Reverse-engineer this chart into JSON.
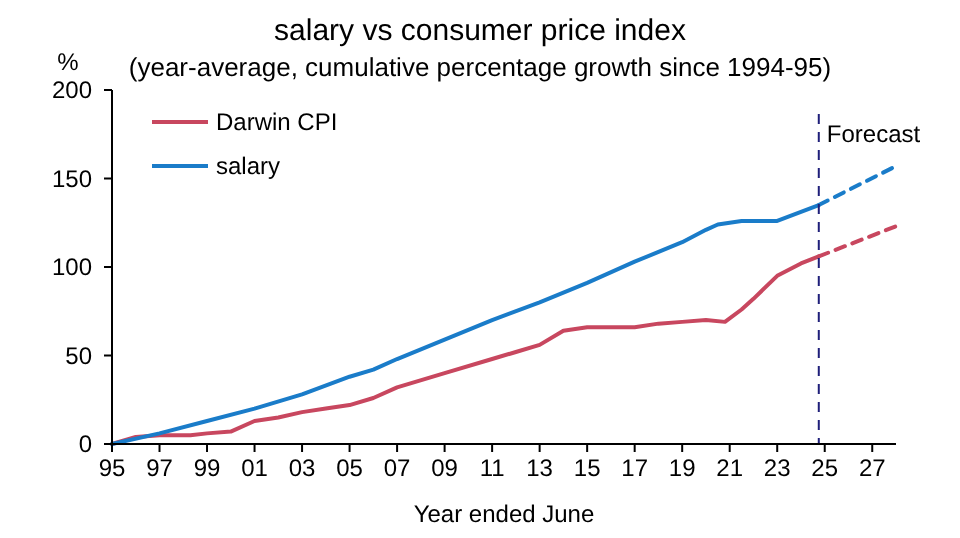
{
  "chart_data": {
    "type": "line",
    "title": "salary vs consumer price index",
    "subtitle": "(year-average, cumulative percentage growth since 1994-95)",
    "xlabel": "Year ended June",
    "ylabel": "%",
    "xlim": [
      1995,
      2028
    ],
    "xticks": [
      {
        "value": 1995,
        "label": "95"
      },
      {
        "value": 1997,
        "label": "97"
      },
      {
        "value": 1999,
        "label": "99"
      },
      {
        "value": 2001,
        "label": "01"
      },
      {
        "value": 2003,
        "label": "03"
      },
      {
        "value": 2005,
        "label": "05"
      },
      {
        "value": 2007,
        "label": "07"
      },
      {
        "value": 2009,
        "label": "09"
      },
      {
        "value": 2011,
        "label": "11"
      },
      {
        "value": 2013,
        "label": "13"
      },
      {
        "value": 2015,
        "label": "15"
      },
      {
        "value": 2017,
        "label": "17"
      },
      {
        "value": 2019,
        "label": "19"
      },
      {
        "value": 2021,
        "label": "21"
      },
      {
        "value": 2023,
        "label": "23"
      },
      {
        "value": 2025,
        "label": "25"
      },
      {
        "value": 2027,
        "label": "27"
      }
    ],
    "ylim": [
      0,
      200
    ],
    "yticks": [
      0,
      50,
      100,
      150,
      200
    ],
    "grid": false,
    "legend": "top left",
    "ref_lines": [
      {
        "axis": "x",
        "value": 2024.75,
        "label": "Forecast",
        "color": "#1f1f7a",
        "line_style": "dashed"
      }
    ],
    "series": [
      {
        "name": "Darwin CPI",
        "color": "#c8475f",
        "line_style": "solid",
        "x": [
          1995,
          1996,
          1997,
          1998.3,
          1999,
          2000,
          2001,
          2002,
          2003,
          2004,
          2005,
          2006,
          2007,
          2009,
          2011,
          2012,
          2013,
          2014,
          2015,
          2017,
          2018,
          2019,
          2020,
          2020.8,
          2021.5,
          2022,
          2023,
          2024,
          2024.75
        ],
        "values": [
          0,
          4,
          5,
          5,
          6,
          7,
          13,
          15,
          18,
          20,
          22,
          26,
          32,
          40,
          48,
          52,
          56,
          64,
          66,
          66,
          68,
          69,
          70,
          69,
          76,
          82,
          95,
          102,
          106
        ]
      },
      {
        "name": "salary",
        "color": "#1a7cc9",
        "line_style": "solid",
        "x": [
          1995,
          1997,
          1999,
          2001,
          2003,
          2005,
          2006,
          2007,
          2009,
          2011,
          2013,
          2015,
          2017,
          2019,
          2020,
          2020.5,
          2021.5,
          2023,
          2024.75
        ],
        "values": [
          0,
          6,
          13,
          20,
          28,
          38,
          42,
          48,
          59,
          70,
          80,
          91,
          103,
          114,
          121,
          124,
          126,
          126,
          135
        ]
      },
      {
        "color": "#c8475f",
        "line_style": "dashed",
        "x": [
          2024.75,
          2028
        ],
        "values": [
          106,
          123
        ]
      },
      {
        "color": "#1a7cc9",
        "line_style": "dashed",
        "x": [
          2024.75,
          2028
        ],
        "values": [
          135,
          157
        ]
      }
    ]
  }
}
